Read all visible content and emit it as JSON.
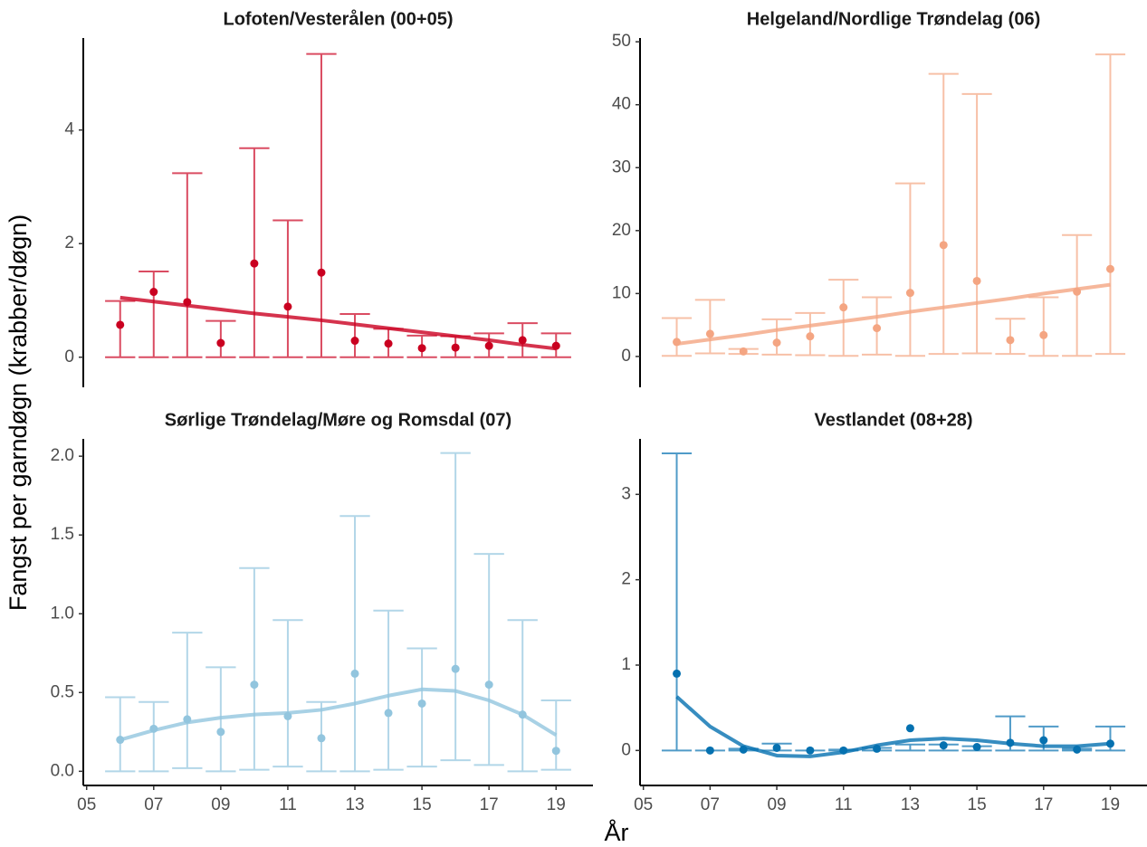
{
  "ylabel": "Fangst per garndøgn (krabber/døgn)",
  "xlabel": "År",
  "chart_data": [
    {
      "type": "errorbar",
      "title": "Lofoten/Vesterålen (00+05)",
      "color": "#ca0020",
      "x": [
        6,
        7,
        8,
        9,
        10,
        11,
        12,
        13,
        14,
        15,
        16,
        17,
        18,
        19
      ],
      "values": [
        0.57,
        1.15,
        0.97,
        0.25,
        1.65,
        0.89,
        1.49,
        0.29,
        0.24,
        0.16,
        0.17,
        0.2,
        0.3,
        0.2
      ],
      "lower": [
        0,
        0,
        0,
        0,
        0,
        0,
        0,
        0,
        0,
        0,
        0,
        0,
        0,
        0
      ],
      "upper": [
        0.99,
        1.51,
        3.24,
        0.64,
        3.68,
        2.41,
        5.34,
        0.76,
        0.5,
        0.38,
        0.37,
        0.42,
        0.6,
        0.42
      ],
      "trend": [
        1.05,
        0.98,
        0.91,
        0.84,
        0.77,
        0.71,
        0.65,
        0.58,
        0.51,
        0.44,
        0.37,
        0.3,
        0.22,
        0.15
      ],
      "xlim": [
        4.9,
        20.1
      ],
      "ylim": [
        -0.53,
        5.62
      ],
      "yticks": [
        0,
        2,
        4
      ]
    },
    {
      "type": "errorbar",
      "title": "Helgeland/Nordlige Trøndelag (06)",
      "color": "#f4a582",
      "x": [
        6,
        7,
        8,
        9,
        10,
        11,
        12,
        13,
        14,
        15,
        16,
        17,
        18,
        19
      ],
      "values": [
        2.3,
        3.6,
        0.8,
        2.2,
        3.2,
        7.8,
        4.5,
        10.1,
        17.7,
        12.0,
        2.6,
        3.4,
        10.3,
        13.9
      ],
      "lower": [
        0.1,
        0.5,
        0.4,
        0.3,
        0.2,
        0.1,
        0.3,
        0.1,
        0.4,
        0.5,
        0.4,
        0.1,
        0.1,
        0.4
      ],
      "upper": [
        6.1,
        9.0,
        1.2,
        5.9,
        6.9,
        12.2,
        9.4,
        27.5,
        44.9,
        41.7,
        6.0,
        9.4,
        19.3,
        48.0
      ],
      "trend": [
        2.0,
        2.7,
        3.4,
        4.2,
        4.9,
        5.6,
        6.3,
        7.1,
        7.8,
        8.5,
        9.2,
        10.0,
        10.7,
        11.4
      ],
      "xlim": [
        4.9,
        20.1
      ],
      "ylim": [
        -4.9,
        50.6
      ],
      "yticks": [
        0,
        10,
        20,
        30,
        40,
        50
      ]
    },
    {
      "type": "errorbar",
      "title": "Sørlige Trøndelag/Møre og Romsdal (07)",
      "color": "#92c5de",
      "x": [
        6,
        7,
        8,
        9,
        10,
        11,
        12,
        13,
        14,
        15,
        16,
        17,
        18,
        19
      ],
      "values": [
        0.2,
        0.27,
        0.33,
        0.25,
        0.55,
        0.35,
        0.21,
        0.62,
        0.37,
        0.43,
        0.65,
        0.55,
        0.36,
        0.13
      ],
      "lower": [
        0,
        0,
        0.02,
        0,
        0.01,
        0.03,
        0,
        0,
        0.01,
        0.03,
        0.07,
        0.04,
        0,
        0.01
      ],
      "upper": [
        0.47,
        0.44,
        0.88,
        0.66,
        1.29,
        0.96,
        0.44,
        1.62,
        1.02,
        0.78,
        2.02,
        1.38,
        0.96,
        0.45
      ],
      "trend": [
        0.2,
        0.26,
        0.31,
        0.34,
        0.36,
        0.37,
        0.39,
        0.43,
        0.48,
        0.52,
        0.51,
        0.45,
        0.36,
        0.23
      ],
      "xlim": [
        4.9,
        20.1
      ],
      "ylim": [
        -0.09,
        2.11
      ],
      "yticks": [
        {
          "value": 0,
          "label": "0.0"
        },
        0.5,
        {
          "value": 1,
          "label": "1.0"
        },
        1.5,
        {
          "value": 2,
          "label": "2.0"
        }
      ],
      "xticks": [
        {
          "value": 5,
          "label": "05"
        },
        {
          "value": 7,
          "label": "07"
        },
        {
          "value": 9,
          "label": "09"
        },
        11,
        13,
        15,
        17,
        19
      ]
    },
    {
      "type": "errorbar",
      "title": "Vestlandet (08+28)",
      "color": "#0571b0",
      "x": [
        6,
        7,
        8,
        9,
        10,
        11,
        12,
        13,
        14,
        15,
        16,
        17,
        18,
        19
      ],
      "values": [
        0.9,
        0.0,
        0.01,
        0.03,
        0.0,
        0.0,
        0.02,
        0.26,
        0.06,
        0.04,
        0.09,
        0.12,
        0.01,
        0.08
      ],
      "lower": [
        0,
        0,
        0,
        0,
        0,
        0,
        0,
        0,
        0,
        0,
        0,
        0,
        0,
        0
      ],
      "upper": [
        3.48,
        0,
        0.02,
        0.08,
        0,
        0.01,
        0.03,
        0.07,
        0.07,
        0.05,
        0.4,
        0.28,
        0.02,
        0.28
      ],
      "trend": [
        0.63,
        0.28,
        0.05,
        -0.06,
        -0.07,
        -0.02,
        0.06,
        0.12,
        0.14,
        0.12,
        0.08,
        0.05,
        0.05,
        0.08
      ],
      "xlim": [
        4.9,
        20.1
      ],
      "ylim": [
        -0.41,
        3.65
      ],
      "yticks": [
        0,
        1,
        2,
        3
      ],
      "xticks": [
        {
          "value": 5,
          "label": "05"
        },
        {
          "value": 7,
          "label": "07"
        },
        {
          "value": 9,
          "label": "09"
        },
        11,
        13,
        15,
        17,
        19
      ]
    }
  ]
}
